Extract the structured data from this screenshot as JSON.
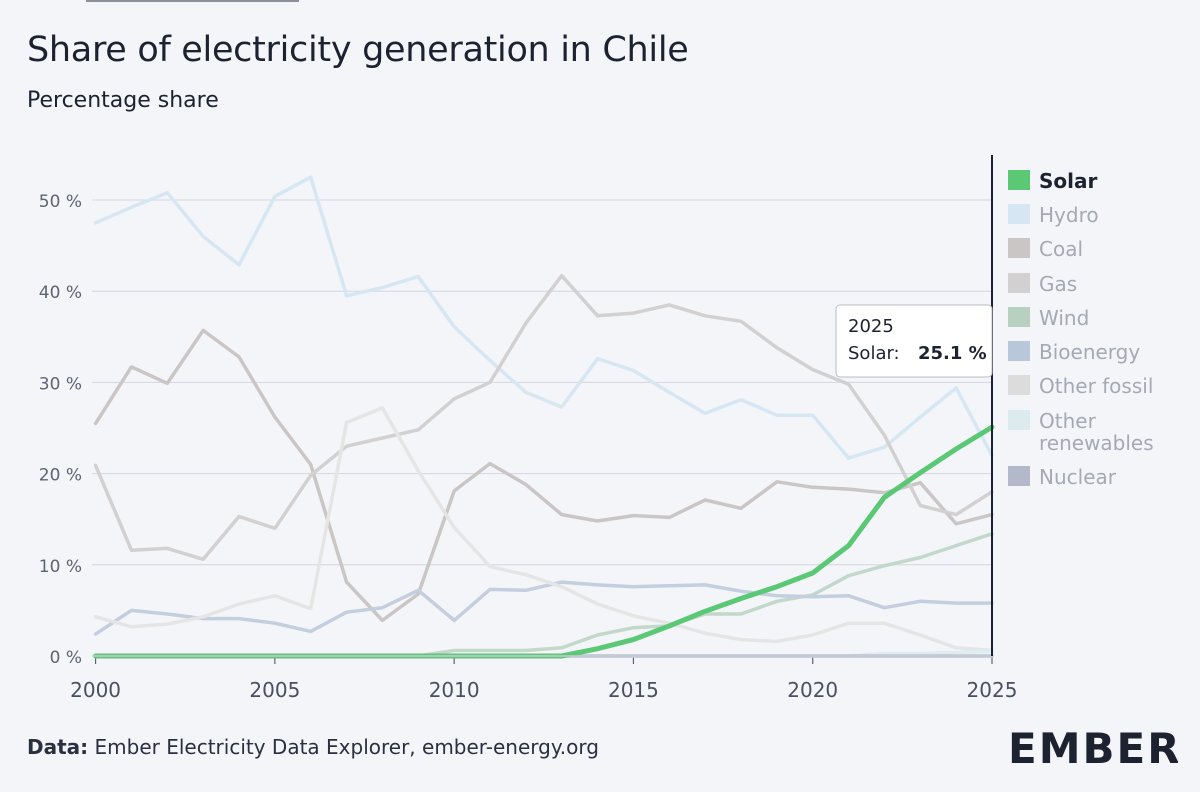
{
  "header": {
    "title": "Share of electricity generation in Chile",
    "subtitle": "Percentage share"
  },
  "footer": {
    "source_label": "Data:",
    "source_text": "Ember Electricity Data Explorer, ember-energy.org"
  },
  "logo": {
    "text": "EMBER",
    "accent": "#5ac875"
  },
  "tooltip": {
    "year": "2025",
    "series": "Solar:",
    "value": "25.1 %"
  },
  "chart_data": {
    "type": "line",
    "title": "Share of electricity generation in Chile",
    "subtitle": "Percentage share",
    "ylim": [
      0,
      55
    ],
    "xlim": [
      2000,
      2025
    ],
    "x_ticks": [
      2000,
      2005,
      2010,
      2015,
      2020,
      2025
    ],
    "y_ticks": [
      0,
      10,
      20,
      30,
      40,
      50
    ],
    "y_tick_labels": [
      "0 %",
      "10 %",
      "20 %",
      "30 %",
      "40 %",
      "50 %"
    ],
    "grid": true,
    "legend_position": "right",
    "highlighted_series": "Solar",
    "x": [
      2000,
      2001,
      2002,
      2003,
      2004,
      2005,
      2006,
      2007,
      2008,
      2009,
      2010,
      2011,
      2012,
      2013,
      2014,
      2015,
      2016,
      2017,
      2018,
      2019,
      2020,
      2021,
      2022,
      2023,
      2024,
      2025
    ],
    "series": [
      {
        "name": "Solar",
        "color": "#5ac875",
        "values": [
          0,
          0,
          0,
          0,
          0,
          0,
          0,
          0,
          0,
          0,
          0,
          0,
          0,
          0,
          0.8,
          1.8,
          3.3,
          4.9,
          6.3,
          7.6,
          9.1,
          12.1,
          17.4,
          20.1,
          22.7,
          25.1
        ]
      },
      {
        "name": "Hydro",
        "color": "#d6e6f2",
        "values": [
          47.5,
          49.2,
          50.8,
          46.0,
          42.9,
          50.4,
          52.5,
          39.5,
          40.4,
          41.6,
          36.1,
          32.4,
          28.9,
          27.3,
          32.6,
          31.3,
          28.9,
          26.6,
          28.1,
          26.4,
          26.4,
          21.7,
          22.9,
          26.2,
          29.4,
          22.0
        ]
      },
      {
        "name": "Coal",
        "color": "#cbc6c6",
        "values": [
          25.5,
          31.7,
          29.9,
          35.7,
          32.8,
          26.2,
          21.0,
          8.1,
          3.9,
          6.8,
          18.1,
          21.1,
          18.8,
          15.5,
          14.8,
          15.4,
          15.2,
          17.1,
          16.2,
          19.1,
          18.5,
          18.3,
          17.9,
          19.0,
          14.5,
          15.5
        ]
      },
      {
        "name": "Gas",
        "color": "#d2d0d0",
        "values": [
          20.9,
          11.6,
          11.8,
          10.6,
          15.3,
          14.0,
          19.8,
          23.0,
          23.9,
          24.8,
          28.2,
          30.0,
          36.5,
          41.7,
          37.3,
          37.6,
          38.5,
          37.3,
          36.7,
          33.8,
          31.4,
          29.8,
          24.2,
          16.5,
          15.5,
          18.0
        ]
      },
      {
        "name": "Wind",
        "color": "#c2d8cb",
        "values": [
          0,
          0,
          0,
          0,
          0,
          0,
          0,
          0,
          0,
          0,
          0.6,
          0.6,
          0.6,
          0.9,
          2.3,
          3.1,
          3.3,
          4.6,
          4.6,
          6.0,
          6.7,
          8.8,
          9.9,
          10.8,
          12.1,
          13.4
        ]
      },
      {
        "name": "Bioenergy",
        "color": "#c3cede",
        "values": [
          2.4,
          5.0,
          4.6,
          4.1,
          4.1,
          3.6,
          2.7,
          4.8,
          5.3,
          7.2,
          3.9,
          7.3,
          7.2,
          8.1,
          7.8,
          7.6,
          7.7,
          7.8,
          7.1,
          6.6,
          6.5,
          6.6,
          5.3,
          6.0,
          5.8,
          5.8
        ]
      },
      {
        "name": "Other fossil",
        "color": "#e5e5e5",
        "values": [
          4.3,
          3.2,
          3.5,
          4.3,
          5.7,
          6.6,
          5.2,
          25.6,
          27.2,
          20.3,
          14.1,
          9.8,
          8.9,
          7.6,
          5.7,
          4.4,
          3.6,
          2.5,
          1.8,
          1.6,
          2.3,
          3.6,
          3.6,
          2.3,
          0.9,
          0.6
        ]
      },
      {
        "name": "Other renewables",
        "color": "#deeef0",
        "values": [
          0,
          0,
          0,
          0,
          0,
          0,
          0,
          0,
          0,
          0,
          0,
          0,
          0,
          0,
          0,
          0,
          0,
          0,
          0,
          0,
          0,
          0,
          0.3,
          0.3,
          0.4,
          0.5
        ]
      },
      {
        "name": "Nuclear",
        "color": "#bcc3d3",
        "values": [
          0,
          0,
          0,
          0,
          0,
          0,
          0,
          0,
          0,
          0,
          0,
          0,
          0,
          0,
          0,
          0,
          0,
          0,
          0,
          0,
          0,
          0,
          0,
          0,
          0,
          0
        ]
      }
    ],
    "legend": [
      {
        "label": "Solar",
        "color": "#5ac875",
        "active": true
      },
      {
        "label": "Hydro",
        "color": "#d6e6f2",
        "active": false
      },
      {
        "label": "Coal",
        "color": "#cbc6c6",
        "active": false
      },
      {
        "label": "Gas",
        "color": "#d2d0d0",
        "active": false
      },
      {
        "label": "Wind",
        "color": "#b7d0c0",
        "active": false
      },
      {
        "label": "Bioenergy",
        "color": "#b9c7db",
        "active": false
      },
      {
        "label": "Other fossil",
        "color": "#dcdcdc",
        "active": false
      },
      {
        "label": "Other renewables",
        "label_lines": [
          "Other",
          "renewables"
        ],
        "color": "#dcecee",
        "active": false
      },
      {
        "label": "Nuclear",
        "color": "#b3b9cb",
        "active": false
      }
    ]
  }
}
